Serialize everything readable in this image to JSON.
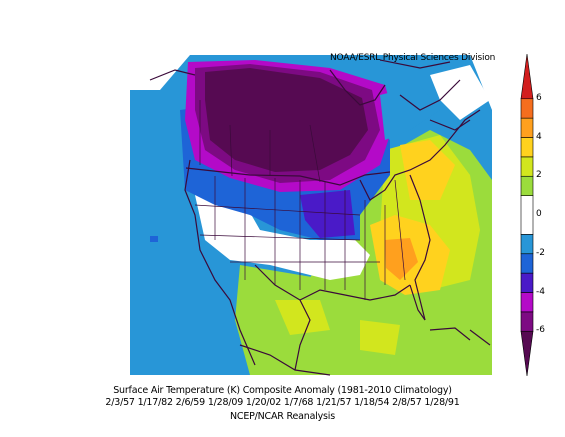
{
  "header": {
    "credit": "NOAA/ESRL Physical Sciences Division"
  },
  "footer": {
    "line1": "Surface Air Temperature (K) Composite Anomaly (1981-2010 Climatology)",
    "line2": "2/3/57 1/17/82 2/6/59 1/28/09 1/20/02 1/7/68 1/21/57 1/18/54 2/8/57 1/28/91",
    "line3": "NCEP/NCAR Reanalysis"
  },
  "colorbar": {
    "ticks": [
      "6",
      "4",
      "2",
      "0",
      "-2",
      "-4",
      "-6"
    ],
    "bins": [
      {
        "from": -8,
        "to": -6,
        "color": "#560a52"
      },
      {
        "from": -6,
        "to": -5,
        "color": "#7d0a83"
      },
      {
        "from": -5,
        "to": -4,
        "color": "#b40ac8"
      },
      {
        "from": -4,
        "to": -3,
        "color": "#4a1ac8"
      },
      {
        "from": -3,
        "to": -2,
        "color": "#1e64d7"
      },
      {
        "from": -2,
        "to": -1,
        "color": "#2896d7"
      },
      {
        "from": -1,
        "to": 1,
        "color": "#ffffff"
      },
      {
        "from": 1,
        "to": 2,
        "color": "#9bdc3c"
      },
      {
        "from": 2,
        "to": 3,
        "color": "#d2e61e"
      },
      {
        "from": 3,
        "to": 4,
        "color": "#ffd21e"
      },
      {
        "from": 4,
        "to": 5,
        "color": "#ffa01e"
      },
      {
        "from": 5,
        "to": 6,
        "color": "#f56e1e"
      },
      {
        "from": 6,
        "to": 8,
        "color": "#d21e1e"
      }
    ]
  }
}
